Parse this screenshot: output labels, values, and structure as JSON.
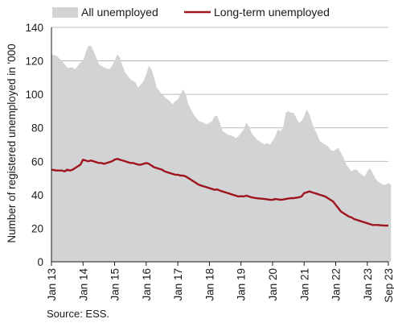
{
  "chart_data": {
    "type": "area",
    "title": "",
    "ylabel": "Number of registered unemployed in '000",
    "xlabel": "",
    "ylim": [
      0,
      140
    ],
    "y_ticks": [
      0,
      20,
      40,
      60,
      80,
      100,
      120,
      140
    ],
    "x_tick_labels": [
      "Jan 13",
      "Jan 14",
      "Jan 15",
      "Jan 16",
      "Jan 17",
      "Jan 18",
      "Jan 19",
      "Jan 20",
      "Jan 21",
      "Jan 22",
      "Jan 23",
      "Sep 23"
    ],
    "x_range": [
      "Jan 13",
      "Sep 23"
    ],
    "grid": "horizontal",
    "legend_position": "top",
    "source": "Source: ESS.",
    "series": [
      {
        "name": "All unemployed",
        "style": "area",
        "color": "#d1d3d4",
        "points": [
          [
            0,
            124
          ],
          [
            2,
            123
          ],
          [
            4,
            120
          ],
          [
            6,
            116
          ],
          [
            8,
            116
          ],
          [
            9,
            115
          ],
          [
            11,
            119
          ],
          [
            12,
            120
          ],
          [
            13,
            125
          ],
          [
            14,
            129
          ],
          [
            15,
            129
          ],
          [
            16,
            126
          ],
          [
            17,
            122
          ],
          [
            18,
            118
          ],
          [
            20,
            116
          ],
          [
            22,
            115
          ],
          [
            23,
            117
          ],
          [
            24,
            120
          ],
          [
            25,
            124
          ],
          [
            26,
            122
          ],
          [
            27,
            117
          ],
          [
            28,
            113
          ],
          [
            30,
            109
          ],
          [
            32,
            107
          ],
          [
            33,
            104
          ],
          [
            34,
            106
          ],
          [
            35,
            108
          ],
          [
            36,
            112
          ],
          [
            37,
            117
          ],
          [
            38,
            115
          ],
          [
            39,
            110
          ],
          [
            40,
            104
          ],
          [
            42,
            100
          ],
          [
            44,
            97
          ],
          [
            45,
            96
          ],
          [
            46,
            94
          ],
          [
            47,
            96
          ],
          [
            48,
            97
          ],
          [
            49,
            100
          ],
          [
            50,
            103
          ],
          [
            51,
            100
          ],
          [
            52,
            94
          ],
          [
            54,
            88
          ],
          [
            56,
            84
          ],
          [
            58,
            83
          ],
          [
            59,
            82
          ],
          [
            60,
            83
          ],
          [
            61,
            84
          ],
          [
            62,
            87
          ],
          [
            63,
            87
          ],
          [
            64,
            83
          ],
          [
            65,
            78
          ],
          [
            67,
            76
          ],
          [
            69,
            75
          ],
          [
            70,
            74
          ],
          [
            71,
            75
          ],
          [
            72,
            77
          ],
          [
            73,
            79
          ],
          [
            74,
            83
          ],
          [
            75,
            81
          ],
          [
            76,
            77
          ],
          [
            78,
            73
          ],
          [
            80,
            71
          ],
          [
            81,
            70
          ],
          [
            82,
            71
          ],
          [
            83,
            70
          ],
          [
            84,
            72
          ],
          [
            85,
            75
          ],
          [
            86,
            79
          ],
          [
            87,
            78
          ],
          [
            88,
            80
          ],
          [
            89,
            89
          ],
          [
            90,
            90
          ],
          [
            91,
            89
          ],
          [
            92,
            89
          ],
          [
            93,
            86
          ],
          [
            94,
            83
          ],
          [
            95,
            84
          ],
          [
            96,
            87
          ],
          [
            97,
            91
          ],
          [
            98,
            88
          ],
          [
            99,
            83
          ],
          [
            100,
            79
          ],
          [
            101,
            76
          ],
          [
            102,
            72
          ],
          [
            104,
            70
          ],
          [
            105,
            69
          ],
          [
            106,
            67
          ],
          [
            107,
            66
          ],
          [
            108,
            67
          ],
          [
            109,
            68
          ],
          [
            110,
            65
          ],
          [
            111,
            62
          ],
          [
            112,
            58
          ],
          [
            113,
            56
          ],
          [
            114,
            54
          ],
          [
            115,
            55
          ],
          [
            116,
            55
          ],
          [
            117,
            53
          ],
          [
            118,
            52
          ],
          [
            119,
            51
          ],
          [
            120,
            54
          ],
          [
            121,
            56
          ],
          [
            122,
            53
          ],
          [
            123,
            50
          ],
          [
            124,
            48
          ],
          [
            125,
            47
          ],
          [
            126,
            46
          ],
          [
            127,
            46
          ],
          [
            128,
            47
          ],
          [
            129,
            46
          ]
        ]
      },
      {
        "name": "Long-term unemployed",
        "style": "line",
        "color": "#a0141e",
        "points": [
          [
            0,
            55
          ],
          [
            2,
            54.5
          ],
          [
            4,
            54.5
          ],
          [
            5,
            54
          ],
          [
            6,
            55
          ],
          [
            7,
            54.5
          ],
          [
            8,
            55
          ],
          [
            9,
            56
          ],
          [
            10,
            57
          ],
          [
            11,
            58
          ],
          [
            12,
            61
          ],
          [
            13,
            60.5
          ],
          [
            14,
            60
          ],
          [
            15,
            60.5
          ],
          [
            16,
            60
          ],
          [
            17,
            59.5
          ],
          [
            18,
            59
          ],
          [
            19,
            59
          ],
          [
            20,
            58.5
          ],
          [
            21,
            59
          ],
          [
            22,
            59.5
          ],
          [
            23,
            60
          ],
          [
            24,
            61
          ],
          [
            25,
            61.5
          ],
          [
            26,
            61
          ],
          [
            27,
            60.5
          ],
          [
            28,
            60
          ],
          [
            29,
            59.5
          ],
          [
            30,
            59
          ],
          [
            31,
            59
          ],
          [
            32,
            58.5
          ],
          [
            33,
            58
          ],
          [
            34,
            58
          ],
          [
            35,
            58.5
          ],
          [
            36,
            59
          ],
          [
            37,
            58.5
          ],
          [
            38,
            57.5
          ],
          [
            39,
            56.5
          ],
          [
            40,
            56
          ],
          [
            41,
            55.5
          ],
          [
            42,
            55
          ],
          [
            43,
            54
          ],
          [
            44,
            53.5
          ],
          [
            45,
            53
          ],
          [
            46,
            52.5
          ],
          [
            47,
            52
          ],
          [
            48,
            52
          ],
          [
            49,
            51.5
          ],
          [
            50,
            51.5
          ],
          [
            51,
            51
          ],
          [
            52,
            50
          ],
          [
            53,
            49
          ],
          [
            54,
            48
          ],
          [
            55,
            47
          ],
          [
            56,
            46
          ],
          [
            57,
            45.5
          ],
          [
            58,
            45
          ],
          [
            59,
            44.5
          ],
          [
            60,
            44
          ],
          [
            61,
            43.5
          ],
          [
            62,
            43
          ],
          [
            63,
            43.2
          ],
          [
            64,
            42.5
          ],
          [
            65,
            42
          ],
          [
            66,
            41.5
          ],
          [
            67,
            41
          ],
          [
            68,
            40.5
          ],
          [
            69,
            40
          ],
          [
            70,
            39.5
          ],
          [
            71,
            39
          ],
          [
            72,
            39.2
          ],
          [
            73,
            39
          ],
          [
            74,
            39.5
          ],
          [
            75,
            39
          ],
          [
            76,
            38.5
          ],
          [
            77,
            38.2
          ],
          [
            78,
            38
          ],
          [
            79,
            37.8
          ],
          [
            80,
            37.7
          ],
          [
            81,
            37.5
          ],
          [
            82,
            37.3
          ],
          [
            83,
            37
          ],
          [
            84,
            37
          ],
          [
            85,
            37.5
          ],
          [
            86,
            37.3
          ],
          [
            87,
            37
          ],
          [
            88,
            37.2
          ],
          [
            89,
            37.5
          ],
          [
            90,
            37.8
          ],
          [
            91,
            38
          ],
          [
            92,
            38
          ],
          [
            93,
            38.3
          ],
          [
            94,
            38.5
          ],
          [
            95,
            39
          ],
          [
            96,
            41
          ],
          [
            97,
            41.5
          ],
          [
            98,
            42
          ],
          [
            99,
            41.5
          ],
          [
            100,
            41
          ],
          [
            101,
            40.5
          ],
          [
            102,
            40
          ],
          [
            103,
            39.5
          ],
          [
            104,
            39
          ],
          [
            105,
            38
          ],
          [
            106,
            37
          ],
          [
            107,
            36
          ],
          [
            108,
            34
          ],
          [
            109,
            32
          ],
          [
            110,
            30
          ],
          [
            111,
            29
          ],
          [
            112,
            28
          ],
          [
            113,
            27
          ],
          [
            114,
            26.5
          ],
          [
            115,
            25.5
          ],
          [
            116,
            25
          ],
          [
            117,
            24.5
          ],
          [
            118,
            24
          ],
          [
            119,
            23.5
          ],
          [
            120,
            23
          ],
          [
            121,
            22.5
          ],
          [
            122,
            22
          ],
          [
            123,
            22
          ],
          [
            124,
            22
          ],
          [
            125,
            21.8
          ],
          [
            126,
            21.7
          ],
          [
            127,
            21.6
          ],
          [
            128,
            21.6
          ]
        ]
      }
    ]
  }
}
